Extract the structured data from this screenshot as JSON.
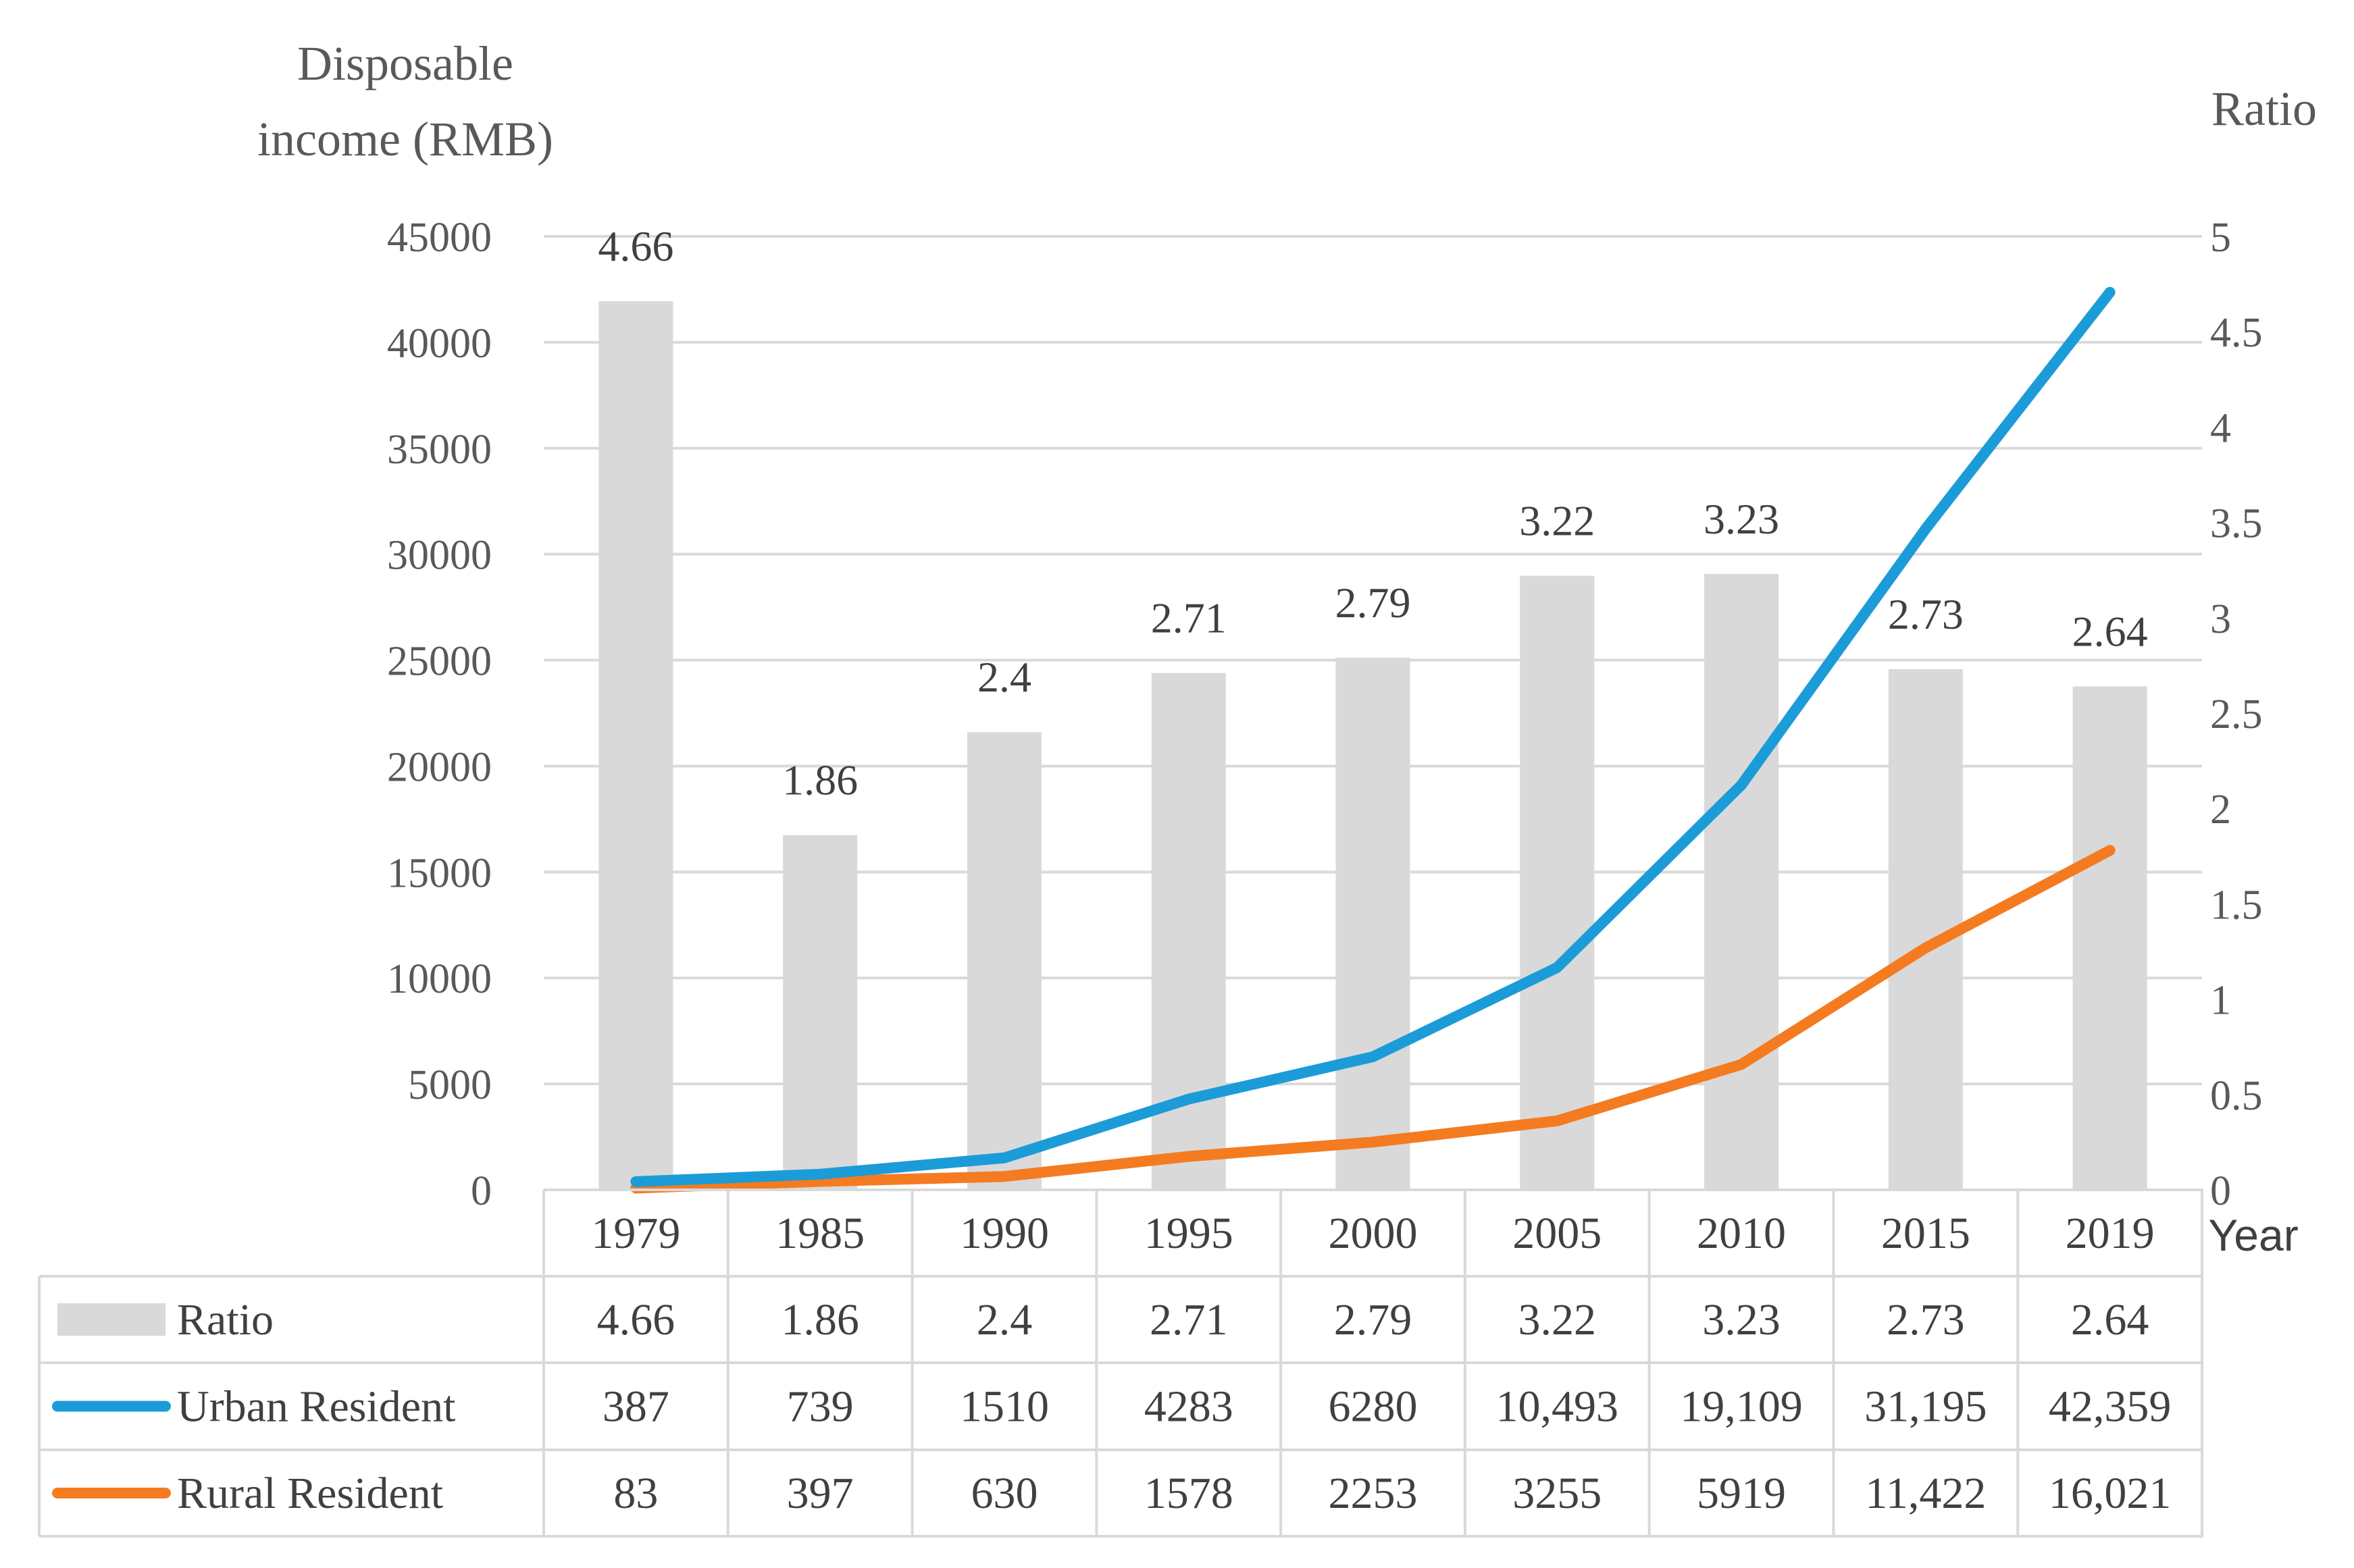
{
  "chart_data": {
    "type": "bar",
    "left_axis_title_line1": "Disposable",
    "left_axis_title_line2": "income (RMB)",
    "right_axis_title": "Ratio",
    "x_axis_title": "Year",
    "categories": [
      "1979",
      "1985",
      "1990",
      "1995",
      "2000",
      "2005",
      "2010",
      "2015",
      "2019"
    ],
    "left_axis": {
      "min": 0,
      "max": 45000,
      "step": 5000,
      "tick_labels": [
        "0",
        "5000",
        "10000",
        "15000",
        "20000",
        "25000",
        "30000",
        "35000",
        "40000",
        "45000"
      ]
    },
    "right_axis": {
      "min": 0,
      "max": 5,
      "step": 0.5,
      "tick_labels": [
        "0",
        "0.5",
        "1",
        "1.5",
        "2",
        "2.5",
        "3",
        "3.5",
        "4",
        "4.5",
        "5"
      ]
    },
    "series": [
      {
        "name": "Ratio",
        "kind": "bar",
        "axis": "right",
        "color": "#d9d9d9",
        "values": [
          4.66,
          1.86,
          2.4,
          2.71,
          2.79,
          3.22,
          3.23,
          2.73,
          2.64
        ],
        "labels": [
          "4.66",
          "1.86",
          "2.4",
          "2.71",
          "2.79",
          "3.22",
          "3.23",
          "2.73",
          "2.64"
        ]
      },
      {
        "name": "Urban Resident",
        "kind": "line",
        "axis": "left",
        "color": "#1b9cd8",
        "values": [
          387,
          739,
          1510,
          4283,
          6280,
          10493,
          19109,
          31195,
          42359
        ],
        "labels": [
          "387",
          "739",
          "1510",
          "4283",
          "6280",
          "10,493",
          "19,109",
          "31,195",
          "42,359"
        ]
      },
      {
        "name": "Rural Resident",
        "kind": "line",
        "axis": "left",
        "color": "#f47b20",
        "values": [
          83,
          397,
          630,
          1578,
          2253,
          3255,
          5919,
          11422,
          16021
        ],
        "labels": [
          "83",
          "397",
          "630",
          "1578",
          "2253",
          "3255",
          "5919",
          "11,422",
          "16,021"
        ]
      }
    ],
    "gridlines": true,
    "data_table": true
  }
}
